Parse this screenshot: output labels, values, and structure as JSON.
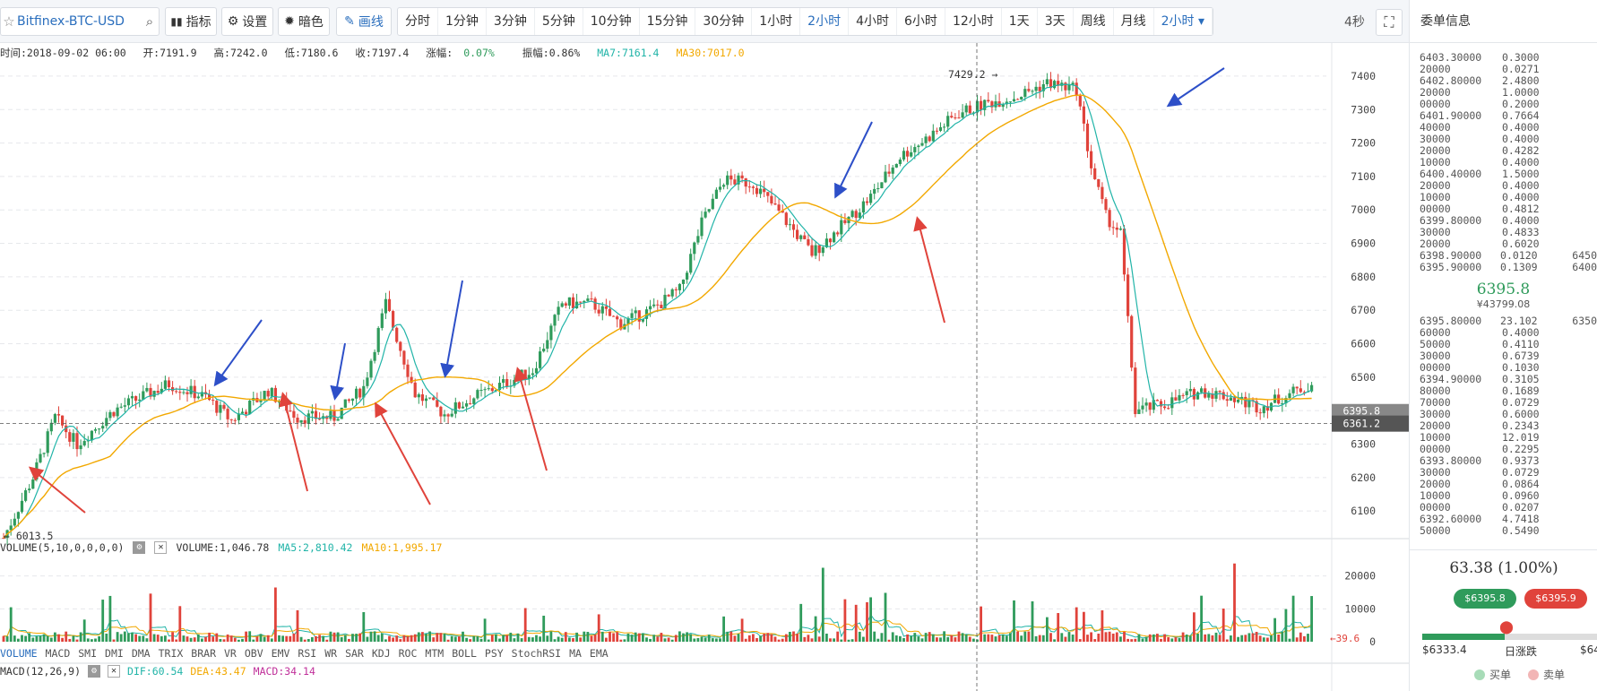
{
  "toolbar": {
    "symbol": "Bitfinex-BTC-USD",
    "indicators_label": "指标",
    "settings_label": "设置",
    "theme_label": "暗色",
    "draw_label": "画线",
    "periods": [
      "分时",
      "1分钟",
      "3分钟",
      "5分钟",
      "10分钟",
      "15分钟",
      "30分钟",
      "1小时",
      "2小时",
      "4小时",
      "6小时",
      "12小时",
      "1天",
      "3天",
      "周线",
      "月线",
      "2小时"
    ],
    "active_period_indices": [
      8,
      16
    ],
    "refresh_label": "4秒"
  },
  "infobar": {
    "time": "时间:2018-09-02 06:00",
    "open": "开:7191.9",
    "high": "高:7242.0",
    "low": "低:7180.6",
    "close": "收:7197.4",
    "change_label": "涨幅:",
    "change_value": "0.07%",
    "amplitude": "振幅:0.86%",
    "ma7": "MA7:7161.4",
    "ma30": "MA30:7017.0"
  },
  "volume_bar": {
    "label": "VOLUME(5,10,0,0,0,0)",
    "volume": "VOLUME:1,046.78",
    "ma5": "MA5:2,810.42",
    "ma10": "MA10:1,995.17"
  },
  "macd_bar": {
    "label": "MACD(12,26,9)",
    "dif": "DIF:60.54",
    "dea": "DEA:43.47",
    "macd": "MACD:34.14"
  },
  "indicator_tabs": [
    "VOLUME",
    "MACD",
    "SMI",
    "DMI",
    "DMA",
    "TRIX",
    "BRAR",
    "VR",
    "OBV",
    "EMV",
    "RSI",
    "WR",
    "SAR",
    "KDJ",
    "ROC",
    "MTM",
    "BOLL",
    "PSY",
    "StochRSI",
    "MA",
    "EMA"
  ],
  "chart_data": {
    "type": "candlestick",
    "price_axis": {
      "ticks": [
        7400,
        7300,
        7200,
        7100,
        7000,
        6900,
        6800,
        6700,
        6600,
        6500,
        6400,
        6300,
        6200,
        6100
      ],
      "range": [
        6020,
        7440
      ]
    },
    "volume_axis": {
      "ticks": [
        20000,
        10000,
        0
      ],
      "range": [
        0,
        24000
      ]
    },
    "current_price_tag": "6395.8",
    "crosshair_price_tag": "6361.2",
    "high_marker": "7429.2",
    "low_marker": "6013.5",
    "volume_last_tag": "39.6",
    "ma7_color": "#21b4a8",
    "ma30_color": "#f2a800",
    "up_color": "#2f9b5b",
    "down_color": "#e0433b",
    "annotation_arrow_colors": [
      "#e0433b",
      "#2d4fc8"
    ]
  },
  "sidebar": {
    "title": "委单信息",
    "asks": [
      [
        "6403.30000",
        "0.3000",
        ""
      ],
      [
        "20000",
        "0.0271",
        ""
      ],
      [
        "6402.80000",
        "2.4800",
        ""
      ],
      [
        "20000",
        "1.0000",
        ""
      ],
      [
        "00000",
        "0.2000",
        ""
      ],
      [
        "6401.90000",
        "0.7664",
        ""
      ],
      [
        "40000",
        "0.4000",
        ""
      ],
      [
        "30000",
        "0.4000",
        ""
      ],
      [
        "20000",
        "0.4282",
        ""
      ],
      [
        "10000",
        "0.4000",
        ""
      ],
      [
        "6400.40000",
        "1.5000",
        ""
      ],
      [
        "20000",
        "0.4000",
        ""
      ],
      [
        "10000",
        "0.4000",
        ""
      ],
      [
        "00000",
        "0.4812",
        ""
      ],
      [
        "6399.80000",
        "0.4000",
        ""
      ],
      [
        "30000",
        "0.4833",
        ""
      ],
      [
        "20000",
        "0.6020",
        ""
      ],
      [
        "6398.90000",
        "0.0120",
        "6450"
      ],
      [
        "6395.90000",
        "0.1309",
        "6400"
      ]
    ],
    "mid_price": "6395.8",
    "mid_cny": "¥43799.08",
    "bids": [
      [
        "6395.80000",
        "23.102",
        "6350"
      ],
      [
        "60000",
        "0.4000",
        ""
      ],
      [
        "50000",
        "0.4110",
        ""
      ],
      [
        "30000",
        "0.6739",
        ""
      ],
      [
        "00000",
        "0.1030",
        ""
      ],
      [
        "6394.90000",
        "0.3105",
        ""
      ],
      [
        "80000",
        "0.1689",
        ""
      ],
      [
        "70000",
        "0.0729",
        ""
      ],
      [
        "30000",
        "0.6000",
        ""
      ],
      [
        "20000",
        "0.2343",
        ""
      ],
      [
        "10000",
        "12.019",
        ""
      ],
      [
        "00000",
        "0.2295",
        ""
      ],
      [
        "6393.80000",
        "0.9373",
        ""
      ],
      [
        "30000",
        "0.0729",
        ""
      ],
      [
        "20000",
        "0.0864",
        ""
      ],
      [
        "10000",
        "0.0960",
        ""
      ],
      [
        "00000",
        "0.0207",
        ""
      ],
      [
        "6392.60000",
        "4.7418",
        ""
      ],
      [
        "50000",
        "0.5490",
        ""
      ]
    ],
    "change": "63.38 (1.00%)",
    "bid_pill": "$6395.8",
    "ask_pill": "$6395.9",
    "day_low": "$6333.4",
    "day_label": "日涨跌",
    "day_high": "$64",
    "day_range_fill_percent": 47,
    "legend_buy": "买单",
    "legend_sell": "卖单",
    "buy_color": "#a8dcb8",
    "sell_color": "#f2b5b5"
  }
}
